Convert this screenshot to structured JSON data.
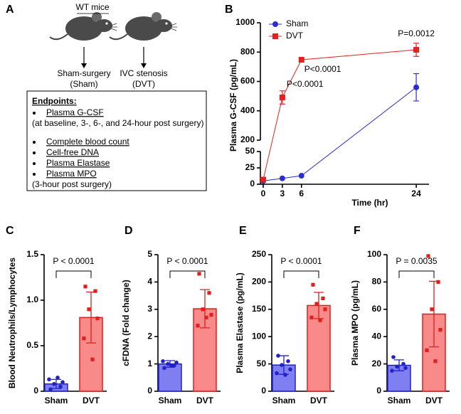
{
  "panel_a": {
    "label": "A",
    "group": "WT mice",
    "arms": [
      {
        "name": "Sham-surgery",
        "group": "(Sham)"
      },
      {
        "name": "IVC stenosis",
        "group": "(DVT)"
      }
    ],
    "endpoints": {
      "title": "Endpoints:",
      "lines": [
        {
          "text": "Plasma G-CSF",
          "bullet": true,
          "underline": true
        },
        {
          "text": "(at baseline, 3-, 6-, and 24-hour post surgery)",
          "bullet": false,
          "underline": false
        },
        {
          "text": "Complete blood count",
          "bullet": true,
          "underline": true
        },
        {
          "text": "Cell-free DNA",
          "bullet": true,
          "underline": true
        },
        {
          "text": "Plasma Elastase",
          "bullet": true,
          "underline": true
        },
        {
          "text": "Plasma MPO",
          "bullet": true,
          "underline": true
        },
        {
          "text": "(3-hour post surgery)",
          "bullet": false,
          "underline": false
        }
      ]
    }
  },
  "chart_data": [
    {
      "panel": "B",
      "type": "line",
      "xlabel": "Time (hr)",
      "ylabel": "Plasma G-CSF (pg/mL)",
      "x": [
        0,
        3,
        6,
        24
      ],
      "xlim": [
        0,
        26
      ],
      "xticks": [
        0,
        3,
        6,
        24
      ],
      "ylim": [
        0,
        1000
      ],
      "ybreak": [
        50,
        200
      ],
      "yticks": [
        0,
        25,
        50,
        200,
        400,
        600,
        800,
        1000
      ],
      "legend": "top-left",
      "series": [
        {
          "name": "Sham",
          "color": "#2b2bd6",
          "marker": "circle",
          "values": [
            5,
            9,
            13,
            560
          ],
          "errors": [
            null,
            null,
            null,
            93
          ]
        },
        {
          "name": "DVT",
          "color": "#e5201e",
          "marker": "square",
          "values": [
            7,
            491,
            748,
            816
          ],
          "errors": [
            null,
            45,
            12,
            45
          ]
        }
      ],
      "annotations": [
        {
          "x": 3,
          "text": "P<0.0001"
        },
        {
          "x": 6,
          "text": "P<0.0001"
        },
        {
          "x": 24,
          "text": "P=0.0012"
        }
      ]
    },
    {
      "panel": "C",
      "type": "bar",
      "ylabel": "Blood Neutrophils/Lymphocytes",
      "categories": [
        "Sham",
        "DVT"
      ],
      "values": [
        0.08,
        0.81
      ],
      "errors": [
        0.05,
        0.28
      ],
      "points": [
        [
          0.02,
          0.05,
          0.08,
          0.1,
          0.13,
          0.15
        ],
        [
          1.15,
          1.1,
          0.9,
          0.8,
          0.58,
          0.35
        ]
      ],
      "colors": [
        "#7f7ff2",
        "#f88a8a"
      ],
      "edge_colors": [
        "#2222cc",
        "#e01f1f"
      ],
      "ylim": [
        0,
        1.5
      ],
      "yticks": [
        0,
        0.5,
        {
          "value": 1,
          "label": "1.0"
        },
        1.5
      ],
      "annotation": "P < 0.0001"
    },
    {
      "panel": "D",
      "type": "bar",
      "ylabel": "cFDNA (Fold change)",
      "categories": [
        "Sham",
        "DVT"
      ],
      "values": [
        1.0,
        3.02
      ],
      "errors": [
        0.12,
        0.7
      ],
      "points": [
        [
          0.85,
          0.95,
          1.0,
          1.05,
          1.1,
          0.95
        ],
        [
          4.3,
          3.6,
          3.0,
          2.8,
          2.4,
          2.7
        ]
      ],
      "colors": [
        "#7f7ff2",
        "#f88a8a"
      ],
      "edge_colors": [
        "#2222cc",
        "#e01f1f"
      ],
      "ylim": [
        0,
        5
      ],
      "yticks": [
        0,
        1,
        2,
        3,
        4,
        5
      ],
      "annotation": "P < 0.0001"
    },
    {
      "panel": "E",
      "type": "bar",
      "ylabel": "Plasma Elastase (pg/mL)",
      "categories": [
        "Sham",
        "DVT"
      ],
      "values": [
        48,
        157
      ],
      "errors": [
        17,
        24
      ],
      "points": [
        [
          65,
          55,
          48,
          40,
          33,
          30
        ],
        [
          195,
          170,
          160,
          150,
          135,
          130
        ]
      ],
      "colors": [
        "#7f7ff2",
        "#f88a8a"
      ],
      "edge_colors": [
        "#2222cc",
        "#e01f1f"
      ],
      "ylim": [
        0,
        250
      ],
      "yticks": [
        0,
        50,
        100,
        150,
        200,
        250
      ],
      "annotation": "P < 0.0001"
    },
    {
      "panel": "F",
      "type": "bar",
      "ylabel": "Plasma MPO (pg/mL)",
      "categories": [
        "Sham",
        "DVT"
      ],
      "values": [
        19,
        56.5
      ],
      "errors": [
        4,
        24
      ],
      "points": [
        [
          25,
          20,
          18,
          17,
          15
        ],
        [
          99,
          80,
          60,
          45,
          30,
          22
        ]
      ],
      "colors": [
        "#7f7ff2",
        "#f88a8a"
      ],
      "edge_colors": [
        "#2222cc",
        "#e01f1f"
      ],
      "ylim": [
        0,
        100
      ],
      "yticks": [
        0,
        20,
        40,
        60,
        80,
        100
      ],
      "annotation": "P = 0.0035"
    }
  ]
}
